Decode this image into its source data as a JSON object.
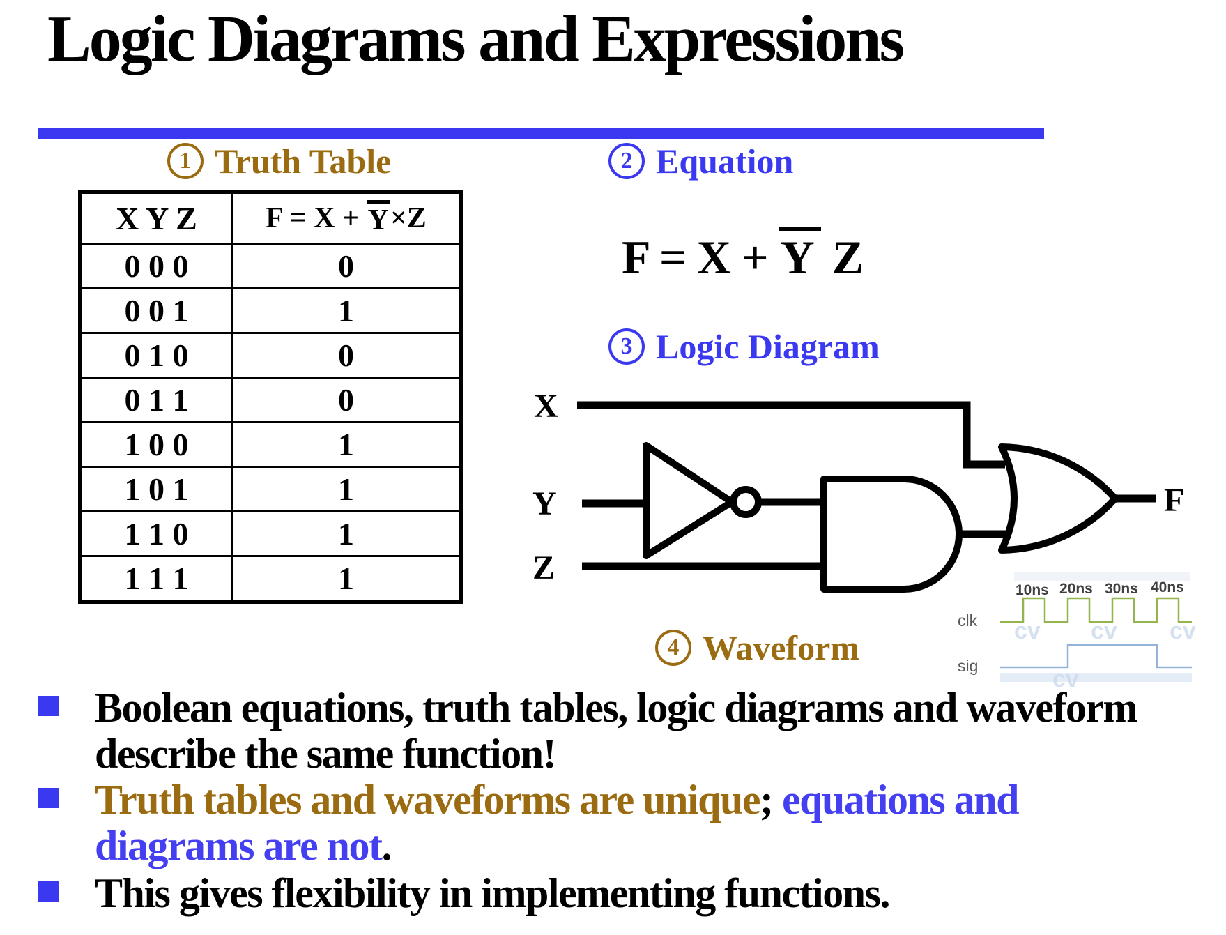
{
  "slide_title": "Logic Diagrams and Expressions",
  "sections": {
    "truth_table": {
      "number": "1",
      "label": "Truth Table"
    },
    "equation": {
      "number": "2",
      "label": "Equation"
    },
    "logic_diagram": {
      "number": "3",
      "label": "Logic Diagram"
    },
    "waveform": {
      "number": "4",
      "label": "Waveform"
    }
  },
  "truth_table": {
    "col1_header": "X Y Z",
    "col2_header": {
      "prefix": "F = X + ",
      "overlined": "Y",
      "suffix": "×Z"
    },
    "rows": [
      {
        "inputs": "0 0 0",
        "output": "0"
      },
      {
        "inputs": "0 0 1",
        "output": "1"
      },
      {
        "inputs": "0 1 0",
        "output": "0"
      },
      {
        "inputs": "0 1 1",
        "output": "0"
      },
      {
        "inputs": "1 0 0",
        "output": "1"
      },
      {
        "inputs": "1 0 1",
        "output": "1"
      },
      {
        "inputs": "1 1 0",
        "output": "1"
      },
      {
        "inputs": "1 1 1",
        "output": "1"
      }
    ]
  },
  "equation": {
    "prefix": "F = X + ",
    "overlined": "Y",
    "suffix": " Z"
  },
  "logic_diagram": {
    "inputs": [
      "X",
      "Y",
      "Z"
    ],
    "output": "F",
    "gates": [
      "NOT",
      "AND",
      "OR"
    ]
  },
  "waveform": {
    "time_labels": [
      "10ns",
      "20ns",
      "30ns",
      "40ns"
    ],
    "signal_labels": [
      "clk",
      "sig"
    ],
    "clk_description": "square wave, 4 pulses, period 10ns",
    "sig_description": "low, high from 20ns to 40ns, low",
    "watermark": "cv"
  },
  "bullets": [
    {
      "lines": [
        [
          {
            "text": "Boolean equations, truth tables, logic diagrams and waveform",
            "color": "black"
          }
        ],
        [
          {
            "text": "describe the same function!",
            "color": "black"
          }
        ]
      ]
    },
    {
      "lines": [
        [
          {
            "text": "Truth tables and waveforms are unique",
            "color": "brown"
          },
          {
            "text": ";",
            "color": "black"
          },
          {
            "text": " equations and",
            "color": "blue"
          }
        ],
        [
          {
            "text": "diagrams are not",
            "color": "blue"
          },
          {
            "text": ".",
            "color": "black"
          }
        ]
      ]
    },
    {
      "lines": [
        [
          {
            "text": "This gives flexibility in implementing functions.",
            "color": "black"
          }
        ]
      ]
    }
  ],
  "colors": {
    "accent_blue": "#3a38f0",
    "brown": "#9a6b10",
    "clk_green": "#94b44f",
    "sig_blue": "#95b3d7",
    "text_black": "#000000"
  }
}
